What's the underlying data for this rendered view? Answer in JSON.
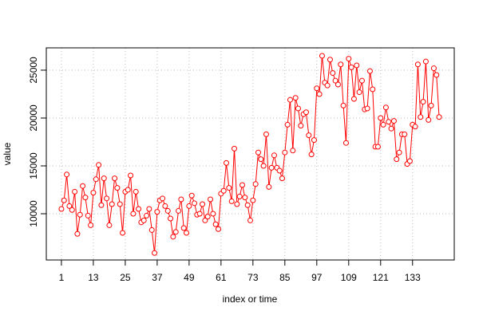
{
  "chart_data": {
    "type": "line",
    "xlabel": "index or time",
    "ylabel": "value",
    "x": [
      1,
      2,
      3,
      4,
      5,
      6,
      7,
      8,
      9,
      10,
      11,
      12,
      13,
      14,
      15,
      16,
      17,
      18,
      19,
      20,
      21,
      22,
      23,
      24,
      25,
      26,
      27,
      28,
      29,
      30,
      31,
      32,
      33,
      34,
      35,
      36,
      37,
      38,
      39,
      40,
      41,
      42,
      43,
      44,
      45,
      46,
      47,
      48,
      49,
      50,
      51,
      52,
      53,
      54,
      55,
      56,
      57,
      58,
      59,
      60,
      61,
      62,
      63,
      64,
      65,
      66,
      67,
      68,
      69,
      70,
      71,
      72,
      73,
      74,
      75,
      76,
      77,
      78,
      79,
      80,
      81,
      82,
      83,
      84,
      85,
      86,
      87,
      88,
      89,
      90,
      91,
      92,
      93,
      94,
      95,
      96,
      97,
      98,
      99,
      100,
      101,
      102,
      103,
      104,
      105,
      106,
      107,
      108,
      109,
      110,
      111,
      112,
      113,
      114,
      115,
      116,
      117,
      118,
      119,
      120,
      121,
      122,
      123,
      124,
      125,
      126,
      127,
      128,
      129,
      130,
      131,
      132,
      133,
      134,
      135,
      136,
      137,
      138,
      139,
      140,
      141,
      142,
      143
    ],
    "series": [
      {
        "color": "#ff0000",
        "values": [
          10500,
          11400,
          14100,
          10800,
          10400,
          12300,
          7900,
          9900,
          12900,
          11700,
          9800,
          8800,
          12200,
          13600,
          15100,
          10900,
          13700,
          11600,
          8800,
          11000,
          13700,
          12700,
          11000,
          8000,
          12300,
          12500,
          14000,
          10000,
          12300,
          10500,
          9100,
          9300,
          9800,
          10500,
          8300,
          5900,
          10200,
          11400,
          11600,
          10800,
          10300,
          9500,
          7600,
          8100,
          10300,
          11500,
          8500,
          8000,
          10800,
          11900,
          11100,
          9900,
          10000,
          11000,
          9300,
          9700,
          11500,
          10000,
          8900,
          8400,
          12100,
          12400,
          15300,
          12700,
          11300,
          16800,
          11000,
          11800,
          13000,
          11700,
          10900,
          9300,
          11400,
          13100,
          16400,
          15700,
          15000,
          18300,
          12800,
          14800,
          16100,
          14800,
          14500,
          13700,
          16400,
          19300,
          21900,
          16600,
          22100,
          21000,
          19200,
          20400,
          20600,
          18200,
          16200,
          17700,
          23100,
          22500,
          26500,
          23700,
          23400,
          26100,
          24700,
          23900,
          23500,
          25600,
          21300,
          17400,
          26200,
          25300,
          22000,
          25500,
          22700,
          23900,
          20900,
          21000,
          24900,
          23000,
          17000,
          17000,
          20000,
          19300,
          21100,
          19600,
          18900,
          19700,
          15700,
          16400,
          18300,
          18300,
          15200,
          15500,
          19300,
          19100,
          25600,
          20100,
          21700,
          25900,
          19800,
          21300,
          25200,
          24500,
          20100
        ]
      }
    ],
    "xlim": [
      -4.68,
      148.68
    ],
    "xticks": [
      1,
      13,
      25,
      37,
      49,
      61,
      73,
      85,
      97,
      109,
      121,
      133
    ],
    "ylim": [
      5170,
      27330
    ],
    "yticks": [
      10000,
      15000,
      20000,
      25000
    ],
    "grid": true
  }
}
